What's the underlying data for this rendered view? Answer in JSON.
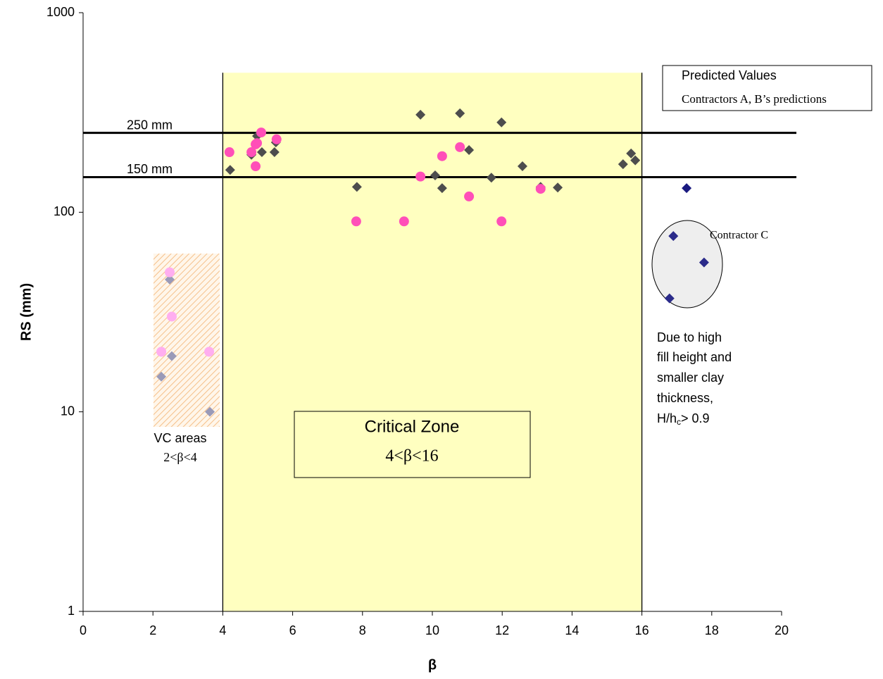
{
  "chart_data": {
    "type": "scatter",
    "x_label": "β",
    "y_label": "RS (mm)",
    "log_y": true,
    "xlim": [
      0,
      20
    ],
    "xticks": [
      0,
      2,
      4,
      6,
      8,
      10,
      12,
      14,
      16,
      18,
      20
    ],
    "ylim": [
      1,
      1000
    ],
    "yticks": [
      1,
      10,
      100,
      1000
    ],
    "zone": {
      "xlim": [
        4,
        16
      ],
      "ylim": [
        1,
        500
      ],
      "color": "#ffffc0"
    },
    "hlines": [
      {
        "value": 250,
        "label": "250 mm"
      },
      {
        "value": 150,
        "label": "150 mm"
      }
    ],
    "legend": "top-right",
    "series": [
      {
        "name": "Predicted Values",
        "marker": "diamond",
        "color": "#000080",
        "x": [
          4.21,
          4.82,
          4.98,
          5.12,
          5.48,
          5.52,
          7.84,
          9.66,
          10.08,
          10.28,
          10.79,
          11.05,
          11.69,
          11.98,
          12.58,
          13.1,
          13.59,
          15.46,
          15.69,
          15.81,
          17.28,
          16.9,
          17.78,
          16.79,
          2.48,
          2.54,
          2.24,
          3.63
        ],
        "values": [
          163,
          194,
          241,
          200,
          200,
          224,
          134,
          308,
          153,
          132,
          313,
          205,
          149,
          282,
          170,
          134,
          133,
          174,
          197,
          182,
          132,
          76,
          56,
          37,
          46,
          19,
          15,
          10
        ],
        "colors": [
          "#4d4d4d",
          "#4d4d4d",
          "#4d4d4d",
          "#4d4d4d",
          "#4d4d4d",
          "#4d4d4d",
          "#4d4d4d",
          "#4d4d4d",
          "#4d4d4d",
          "#4d4d4d",
          "#4d4d4d",
          "#4d4d4d",
          "#4d4d4d",
          "#4d4d4d",
          "#4d4d4d",
          "#4d4d4d",
          "#4d4d4d",
          "#4d4d4d",
          "#4d4d4d",
          "#4d4d4d",
          "#1a1a80",
          "#2b2b8a",
          "#2b2b8a",
          "#2b2b8a",
          "#9a9ab8",
          "#9a9ab8",
          "#9a9ab8",
          "#9a9ab8"
        ]
      },
      {
        "name": "Contractors A, B’s predictions",
        "marker": "circle",
        "color": "#ff33cc",
        "x": [
          4.19,
          4.82,
          4.94,
          4.98,
          4.94,
          5.1,
          5.54,
          7.82,
          9.19,
          9.66,
          10.28,
          10.79,
          11.05,
          11.98,
          13.1,
          2.48,
          2.54,
          2.24,
          3.61
        ],
        "values": [
          200,
          200,
          219,
          222,
          170,
          251,
          232,
          90,
          90,
          151,
          191,
          212,
          120,
          90,
          131,
          50,
          30,
          20,
          20
        ],
        "colors": [
          "#ff4fb8",
          "#ff4fb8",
          "#ff4fb8",
          "#ff4fb8",
          "#ff4fb8",
          "#ff4fb8",
          "#ff4fb8",
          "#ff4fb8",
          "#ff4fb8",
          "#ff4fb8",
          "#ff4fb8",
          "#ff4fb8",
          "#ff4fb8",
          "#ff4fb8",
          "#ff4fb8",
          "#ffaef0",
          "#ffaef0",
          "#ffaef0",
          "#ffaef0"
        ]
      }
    ],
    "annotations": {
      "critical_zone": "Critical Zone",
      "critical_range": "4<β<16",
      "vc_areas": "VC areas",
      "vc_range": "2<β<4",
      "contractor_c": "Contractor C",
      "note": [
        "Due to high",
        "fill height and",
        "smaller clay",
        "thickness,"
      ],
      "ratio": [
        "H/h",
        "c",
        "> 0.9"
      ]
    }
  }
}
